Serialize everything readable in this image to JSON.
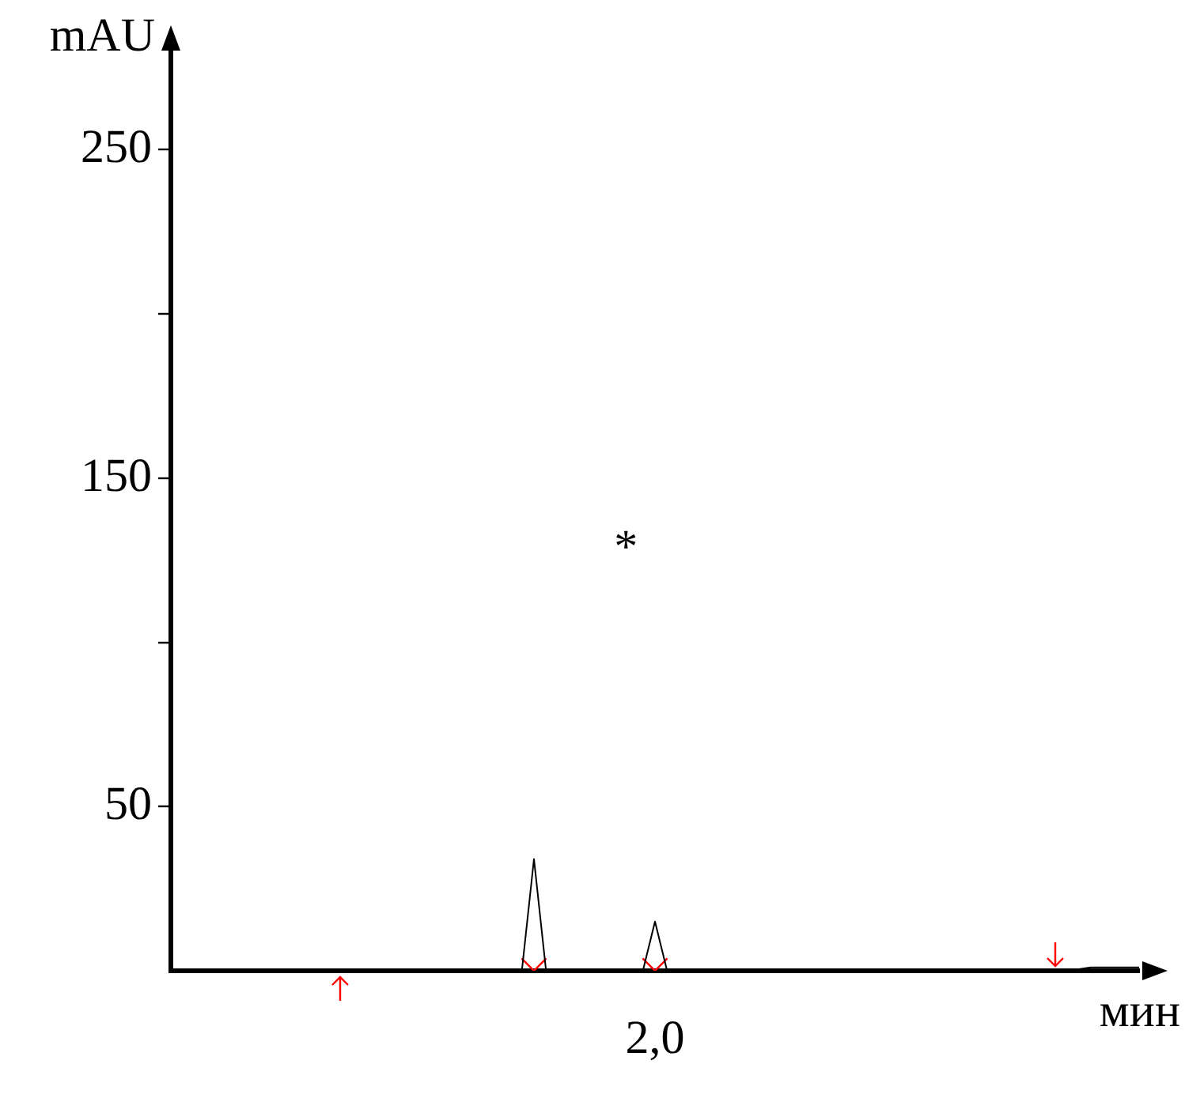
{
  "chart_data": {
    "type": "line",
    "xlabel": "мин",
    "ylabel": "mAU",
    "annotations": [
      "*"
    ],
    "categories": [
      null,
      null,
      null,
      null,
      null,
      null,
      null,
      null,
      null,
      null,
      null,
      null,
      null,
      null,
      null,
      null,
      null,
      null,
      null,
      null,
      null,
      null,
      null,
      null,
      null,
      null,
      null,
      null,
      null,
      null,
      null,
      null,
      null,
      null,
      null,
      null,
      null,
      null,
      null,
      null,
      "2,0",
      null,
      null,
      null,
      null,
      null,
      null,
      null,
      null,
      null,
      null,
      null,
      null,
      null,
      null,
      null,
      null,
      null,
      null,
      null,
      null,
      null,
      null,
      null,
      null,
      null,
      null,
      null,
      null,
      null,
      null,
      null,
      null,
      null,
      null,
      null,
      null,
      null,
      null,
      null,
      null
    ],
    "series": [
      {
        "type": "line",
        "color": "#000000",
        "marker": "none",
        "values": [
          null,
          null,
          null,
          null,
          null,
          null,
          null,
          null,
          null,
          null,
          null,
          null,
          null,
          null,
          0,
          0,
          0,
          0,
          0,
          0,
          0,
          0,
          0,
          0,
          0,
          0,
          0,
          0,
          0,
          0,
          34,
          0,
          0,
          0,
          0,
          0,
          0,
          0,
          0,
          0,
          15,
          0,
          0,
          0,
          0,
          0,
          0,
          0,
          0,
          0,
          0,
          0,
          0,
          0,
          0,
          0,
          0,
          0,
          0,
          0,
          0,
          0,
          0,
          0,
          0,
          0,
          0.5,
          0.5,
          0.5,
          0.5,
          0.5,
          0.5,
          0.5,
          0.5,
          0.5,
          0.5,
          1,
          1,
          1,
          1,
          1
        ]
      },
      {
        "type": "scatter",
        "color": "#ff0000",
        "marker": "cross",
        "values": [
          null,
          null,
          null,
          null,
          null,
          null,
          null,
          null,
          null,
          null,
          null,
          null,
          null,
          null,
          null,
          null,
          null,
          null,
          null,
          null,
          null,
          null,
          null,
          null,
          null,
          null,
          null,
          null,
          null,
          null,
          0,
          null,
          null,
          null,
          null,
          null,
          null,
          null,
          null,
          null,
          0,
          null,
          null,
          null,
          null,
          null,
          null,
          null,
          null,
          null,
          null,
          null,
          null,
          null,
          null,
          null,
          null,
          null,
          null,
          null,
          null,
          null,
          null,
          null,
          null,
          null,
          null,
          null,
          null,
          null,
          null,
          null,
          null,
          null,
          null,
          null,
          null,
          null,
          null,
          null,
          null
        ]
      }
    ],
    "ylim": [
      0,
      285
    ],
    "yticks": [
      50,
      {
        "value": 100,
        "label": null
      },
      150,
      {
        "value": 200,
        "label": null
      },
      250
    ],
    "grid": false,
    "legend": false
  }
}
